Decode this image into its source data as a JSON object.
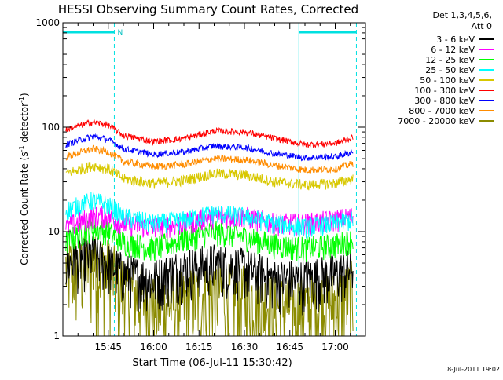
{
  "chart_data": {
    "type": "line",
    "title": "HESSI Observing Summary Count Rates, Corrected",
    "xlabel": "Start Time (06-Jul-11 15:30:42)",
    "ylabel_main": "Corrected Count Rate (s",
    "ylabel_sup1": "-1",
    "ylabel_mid": " detector",
    "ylabel_sup2": "-1",
    "ylabel_end": ")",
    "yscale": "log",
    "xlim": [
      "15:30",
      "17:10"
    ],
    "ylim": [
      1,
      1000
    ],
    "x_ticks": [
      "15:45",
      "16:00",
      "16:15",
      "16:30",
      "16:45",
      "17:00"
    ],
    "y_ticks": [
      "1",
      "10",
      "100",
      "1000"
    ],
    "legend_title_line1": "Det 1,3,4,5,6,",
    "legend_title_line2": "Att 0",
    "legend_placement": "right",
    "footer_date": "8-Jul-2011 19:02",
    "night_marker_label": "N",
    "spacecraft_night_intervals": [
      [
        "15:30",
        "15:47"
      ],
      [
        "16:48",
        "17:07"
      ]
    ],
    "series": [
      {
        "name": "3 - 6 keV",
        "color": "#000000",
        "x": [
          "15:31",
          "15:40",
          "15:45",
          "15:50",
          "16:00",
          "16:10",
          "16:20",
          "16:30",
          "16:40",
          "16:50",
          "17:00",
          "17:06"
        ],
        "y": [
          5,
          6,
          5,
          4,
          3.5,
          4.5,
          5,
          4.5,
          3.5,
          3.5,
          4,
          4.5
        ]
      },
      {
        "name": "6 - 12 keV",
        "color": "#ff00ff",
        "x": [
          "15:31",
          "15:40",
          "15:45",
          "15:50",
          "16:00",
          "16:10",
          "16:20",
          "16:30",
          "16:40",
          "16:50",
          "17:00",
          "17:06"
        ],
        "y": [
          11,
          14,
          14,
          12,
          11,
          12,
          14,
          14,
          12,
          12,
          13,
          14
        ]
      },
      {
        "name": "12 - 25 keV",
        "color": "#00ff00",
        "x": [
          "15:31",
          "15:40",
          "15:45",
          "15:50",
          "16:00",
          "16:10",
          "16:20",
          "16:30",
          "16:40",
          "16:50",
          "17:00",
          "17:06"
        ],
        "y": [
          8,
          11,
          10,
          8,
          7,
          8.5,
          10,
          9,
          7.5,
          7,
          7.5,
          8.5
        ]
      },
      {
        "name": "25 - 50 keV",
        "color": "#00ffff",
        "x": [
          "15:31",
          "15:40",
          "15:45",
          "15:50",
          "16:00",
          "16:10",
          "16:20",
          "16:30",
          "16:40",
          "16:50",
          "17:00",
          "17:06"
        ],
        "y": [
          16,
          20,
          18,
          14,
          12,
          13,
          15,
          14,
          12,
          11,
          12,
          13
        ]
      },
      {
        "name": "50 - 100 keV",
        "color": "#d8c800",
        "x": [
          "15:31",
          "15:40",
          "15:45",
          "15:50",
          "16:00",
          "16:10",
          "16:20",
          "16:30",
          "16:40",
          "16:50",
          "17:00",
          "17:06"
        ],
        "y": [
          36,
          43,
          40,
          32,
          29,
          31,
          36,
          35,
          30,
          28,
          29,
          32
        ]
      },
      {
        "name": "100 - 300 keV",
        "color": "#ff0000",
        "x": [
          "15:31",
          "15:40",
          "15:45",
          "15:50",
          "16:00",
          "16:10",
          "16:20",
          "16:30",
          "16:40",
          "16:50",
          "17:00",
          "17:06"
        ],
        "y": [
          95,
          112,
          105,
          83,
          73,
          78,
          92,
          90,
          78,
          68,
          70,
          80
        ]
      },
      {
        "name": "300 - 800 keV",
        "color": "#0000ff",
        "x": [
          "15:31",
          "15:40",
          "15:45",
          "15:50",
          "16:00",
          "16:10",
          "16:20",
          "16:30",
          "16:40",
          "16:50",
          "17:00",
          "17:06"
        ],
        "y": [
          68,
          82,
          76,
          62,
          55,
          58,
          66,
          64,
          56,
          51,
          52,
          58
        ]
      },
      {
        "name": "800 - 7000 keV",
        "color": "#ff8c00",
        "x": [
          "15:31",
          "15:40",
          "15:45",
          "15:50",
          "16:00",
          "16:10",
          "16:20",
          "16:30",
          "16:40",
          "16:50",
          "17:00",
          "17:06"
        ],
        "y": [
          52,
          62,
          58,
          47,
          42,
          44,
          50,
          49,
          43,
          39,
          40,
          45
        ]
      },
      {
        "name": "7000 - 20000 keV",
        "color": "#8b8b00",
        "x": [
          "15:31",
          "15:40",
          "15:45",
          "15:50",
          "16:00",
          "16:10",
          "16:20",
          "16:30",
          "16:40",
          "16:50",
          "17:00",
          "17:06"
        ],
        "y": [
          4.5,
          5,
          4.5,
          3,
          2,
          2.2,
          2.8,
          2.5,
          2,
          2,
          2.2,
          2.8
        ]
      }
    ]
  }
}
